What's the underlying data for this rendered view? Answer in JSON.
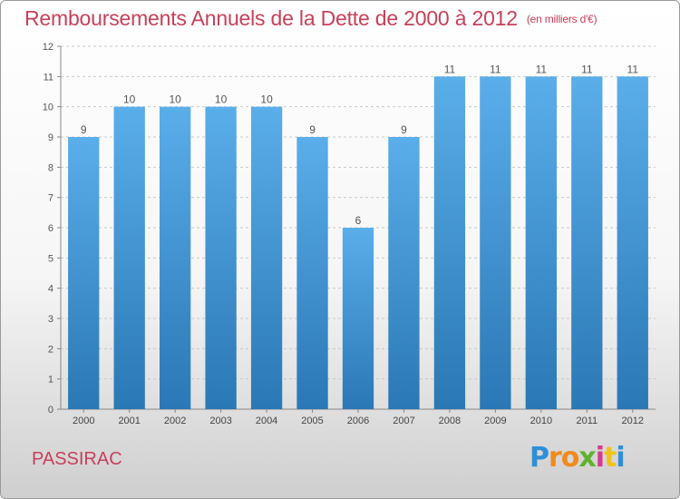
{
  "chart_data": {
    "type": "bar",
    "title": "Remboursements Annuels de la Dette de 2000 à 2012",
    "subtitle": "(en milliers d'€)",
    "categories": [
      "2000",
      "2001",
      "2002",
      "2003",
      "2004",
      "2005",
      "2006",
      "2007",
      "2008",
      "2009",
      "2010",
      "2011",
      "2012"
    ],
    "values": [
      9,
      10,
      10,
      10,
      10,
      9,
      6,
      9,
      11,
      11,
      11,
      11,
      11
    ],
    "ylim": [
      0,
      12
    ],
    "yticks": [
      0,
      1,
      2,
      3,
      4,
      5,
      6,
      7,
      8,
      9,
      10,
      11,
      12
    ],
    "grid": true,
    "bar_color_top": "#5aaeea",
    "bar_color_bottom": "#2a78b5"
  },
  "footer": {
    "place": "PASSIRAC",
    "logo": [
      "P",
      "r",
      "o",
      "x",
      "i",
      "t",
      "i"
    ],
    "logo_colors": [
      "#2e8fd6",
      "#f08a1c",
      "#f08a1c",
      "#62b133",
      "#d63a8e",
      "#f0c31c",
      "#2e8fd6"
    ]
  }
}
